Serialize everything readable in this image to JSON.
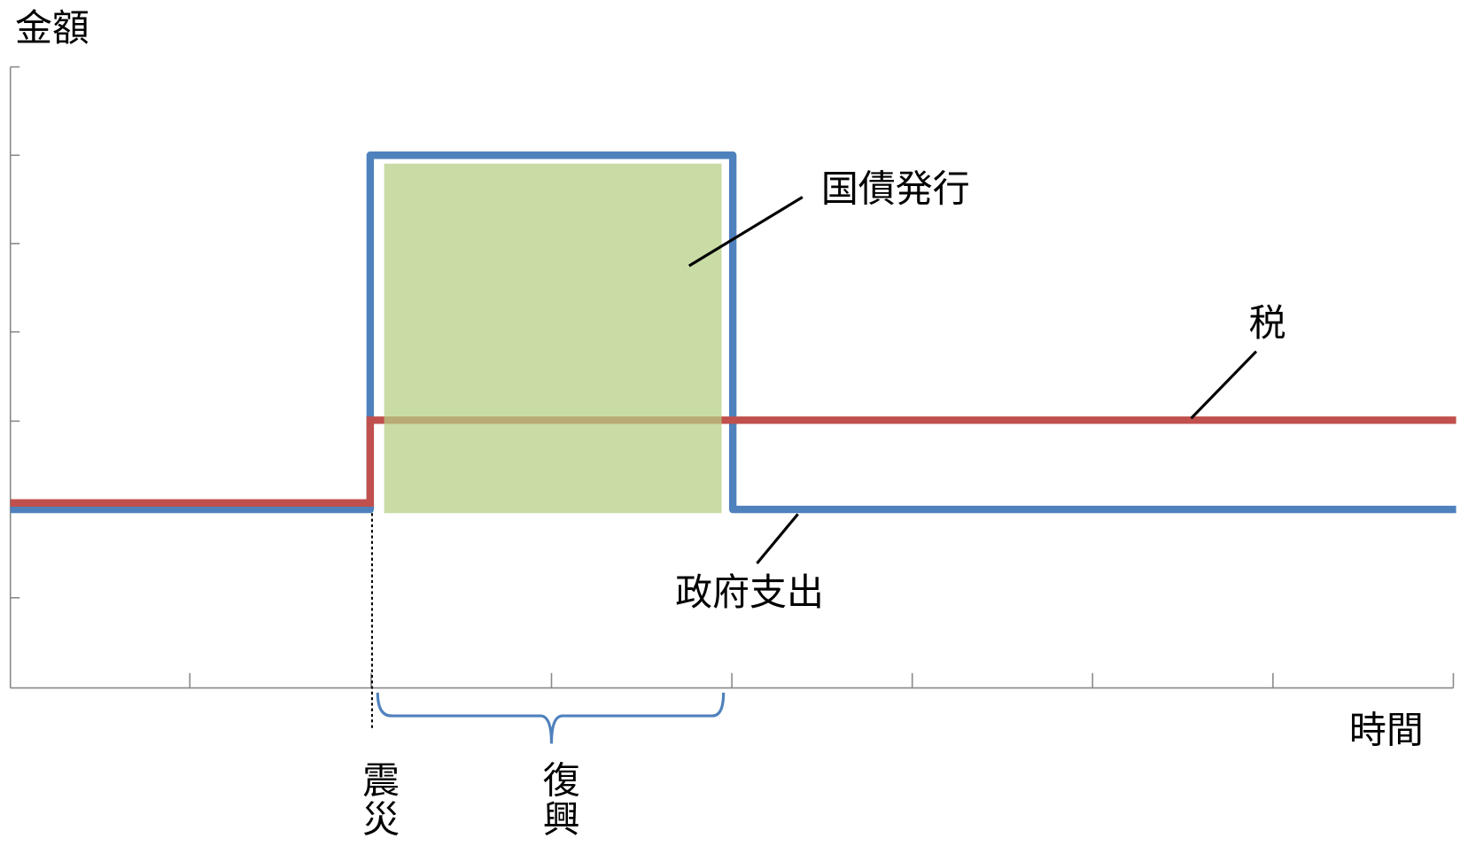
{
  "axis": {
    "y_label": "金額",
    "x_label": "時間"
  },
  "labels": {
    "bond_issue": "国債発行",
    "tax": "税",
    "government_spending": "政府支出"
  },
  "periods": {
    "disaster": "震災",
    "reconstruction": "復興"
  }
}
